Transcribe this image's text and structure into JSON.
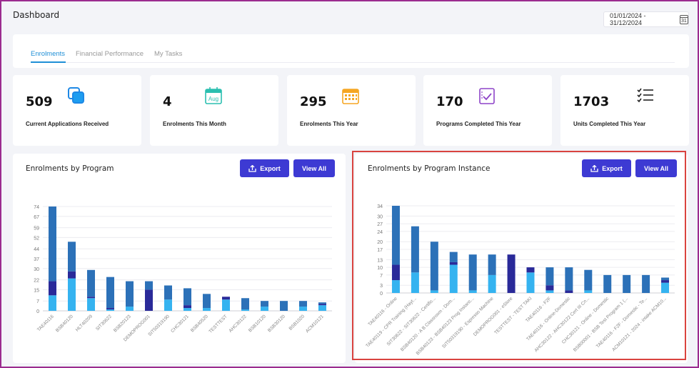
{
  "page": {
    "title": "Dashboard",
    "date_range": "01/01/2024 - 31/12/2024",
    "calendar_day": "31"
  },
  "tabs": [
    {
      "label": "Enrolments",
      "active": true
    },
    {
      "label": "Financial Performance",
      "active": false
    },
    {
      "label": "My Tasks",
      "active": false
    }
  ],
  "stats": [
    {
      "value": "509",
      "label": "Current Applications Received",
      "icon": "copy-squares-icon"
    },
    {
      "value": "4",
      "label": "Enrolments This Month",
      "icon": "calendar-aug-icon",
      "icon_text": "Aug"
    },
    {
      "value": "295",
      "label": "Enrolments This Year",
      "icon": "calendar-grid-icon"
    },
    {
      "value": "170",
      "label": "Programs Completed This Year",
      "icon": "clipboard-check-icon"
    },
    {
      "value": "1703",
      "label": "Units Completed This Year",
      "icon": "checklist-icon"
    }
  ],
  "buttons": {
    "export": "Export",
    "view_all": "View All"
  },
  "colors": {
    "dark": "#2a2a99",
    "mid": "#2c71b8",
    "light": "#35b3f0",
    "accent": "#3d3ad3",
    "highlight": "#d9433f"
  },
  "chart_data": [
    {
      "type": "bar",
      "title": "Enrolments by Program",
      "stacked": true,
      "categories": [
        "TAE40116",
        "BSB40120",
        "HLT40209",
        "SIT30622",
        "BSB20123",
        "DEMOPROG001",
        "SIT50319190",
        "CHC30121",
        "BSB40520",
        "TESTTEST",
        "AHC30122",
        "BSB10120",
        "BSB30120",
        "BSB1020",
        "ACM10121"
      ],
      "series": [
        {
          "color": "light",
          "values": [
            11,
            23,
            9,
            1,
            3,
            0,
            8,
            2,
            2,
            8,
            1,
            3,
            0,
            3,
            4
          ]
        },
        {
          "color": "dark",
          "values": [
            10,
            5,
            1,
            1,
            0,
            15,
            0,
            2,
            0,
            2,
            0,
            0,
            0,
            0,
            1
          ]
        },
        {
          "color": "mid",
          "values": [
            53,
            21,
            19,
            22,
            18,
            6,
            10,
            12,
            10,
            0,
            8,
            4,
            7,
            4,
            1
          ]
        }
      ],
      "yticks": [
        0,
        7,
        15,
        22,
        30,
        37,
        44,
        52,
        59,
        67,
        74
      ],
      "ylim": [
        0,
        74
      ],
      "grid": true
    },
    {
      "type": "bar",
      "title": "Enrolments by Program Instance",
      "stacked": true,
      "categories": [
        "TAE40116 - Online",
        "TAE40119 - CPR Training (Hayt...",
        "SIT30622 - SIT30622 - Certific...",
        "BSB40120 - A B Classroom - Dom...",
        "BSB40123 - BSB40123 Prog Instanc...",
        "SIT50319190 - Espresso Machine",
        "DEMOPROG001 - eStore",
        "TESTTEST - TEST TAKI",
        "TAE40116 - F2F",
        "TAE40116 - Online-Domestic",
        "AHC30122 - AHC30122 Cert III Cn...",
        "CHC30121 - Online - Domestic",
        "BSB00001 - BSB Test Program 1 (...",
        "TAE40116 - F2F - Domestic - Te...",
        "ACM10121 - 2024 - intake ACM10..."
      ],
      "series": [
        {
          "color": "light",
          "values": [
            5,
            8,
            1,
            11,
            1,
            7,
            0,
            8,
            1,
            0,
            1,
            0,
            0,
            0,
            4
          ]
        },
        {
          "color": "dark",
          "values": [
            6,
            0,
            0,
            1,
            0,
            0,
            15,
            2,
            2,
            1,
            0,
            0,
            0,
            0,
            1
          ]
        },
        {
          "color": "mid",
          "values": [
            23,
            18,
            19,
            4,
            14,
            8,
            0,
            0,
            7,
            9,
            8,
            7,
            7,
            7,
            1
          ]
        }
      ],
      "yticks": [
        0,
        3,
        7,
        10,
        13,
        17,
        20,
        24,
        27,
        30,
        34
      ],
      "ylim": [
        0,
        34
      ],
      "grid": true
    }
  ]
}
